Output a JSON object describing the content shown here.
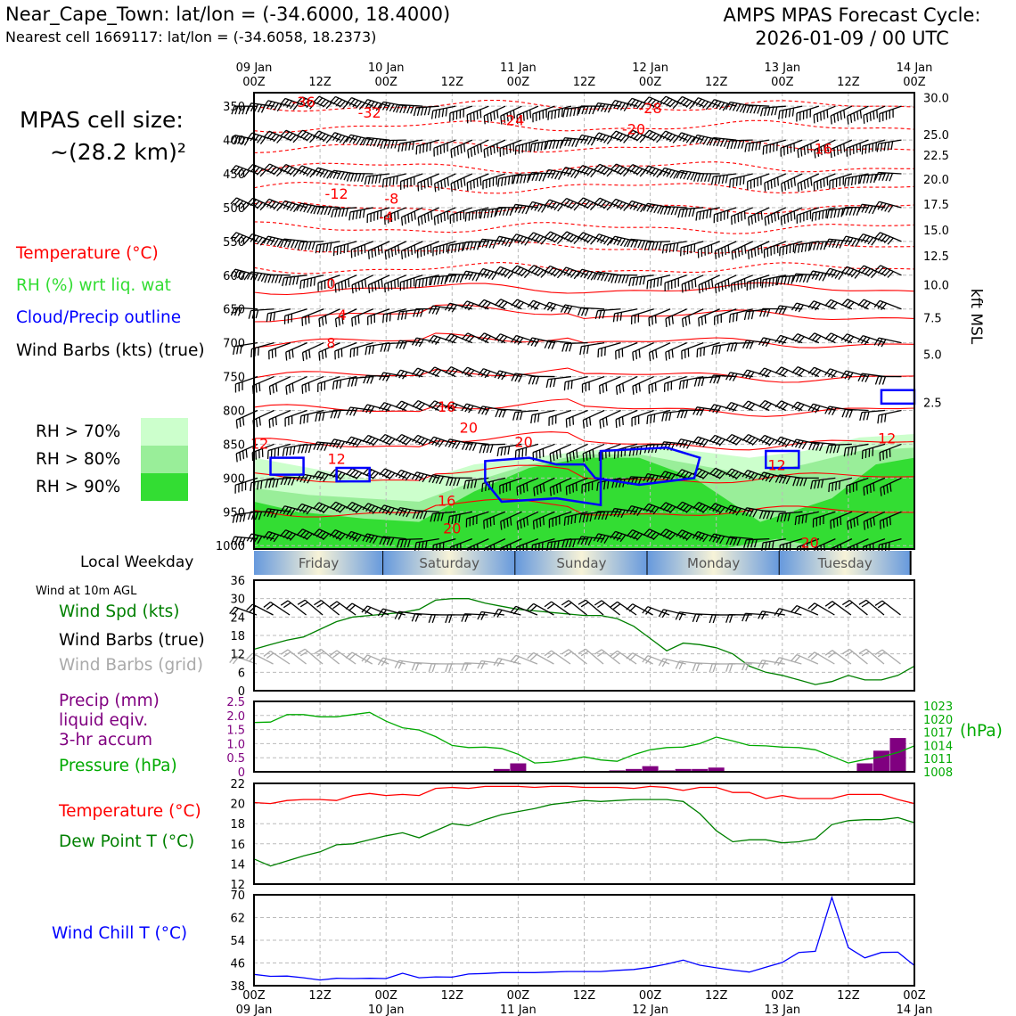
{
  "header": {
    "title_left": "Near_Cape_Town: lat/lon = (-34.6000, 18.4000)",
    "subtitle_left": "Nearest cell 1669117: lat/lon = (-34.6058, 18.2373)",
    "title_right_line1": "AMPS MPAS Forecast Cycle:",
    "title_right_line2": "2026-01-09 / 00 UTC",
    "cell_size_line1": "MPAS cell size:",
    "cell_size_line2": "~(28.2 km)²"
  },
  "colors": {
    "temperature": "#ff0000",
    "rh": "#33cc33",
    "cloud": "#0000ff",
    "wind": "#000000",
    "wind_grid": "#aaaaaa",
    "precip": "#800080",
    "pressure": "#00aa00",
    "dewpoint": "#008000",
    "windchill": "#0000ff",
    "rh70": "#ccffcc",
    "rh80": "#99ee99",
    "rh90": "#33dd33"
  },
  "time_axis": {
    "top_labels": [
      {
        "l1": "09 Jan",
        "l2": "00Z"
      },
      {
        "l1": "",
        "l2": "12Z"
      },
      {
        "l1": "10 Jan",
        "l2": "00Z"
      },
      {
        "l1": "",
        "l2": "12Z"
      },
      {
        "l1": "11 Jan",
        "l2": "00Z"
      },
      {
        "l1": "",
        "l2": "12Z"
      },
      {
        "l1": "12 Jan",
        "l2": "00Z"
      },
      {
        "l1": "",
        "l2": "12Z"
      },
      {
        "l1": "13 Jan",
        "l2": "00Z"
      },
      {
        "l1": "",
        "l2": "12Z"
      },
      {
        "l1": "14 Jan",
        "l2": "00Z"
      }
    ],
    "bottom_labels": [
      {
        "l1": "00Z",
        "l2": "09 Jan"
      },
      {
        "l1": "12Z",
        "l2": ""
      },
      {
        "l1": "00Z",
        "l2": "10 Jan"
      },
      {
        "l1": "12Z",
        "l2": ""
      },
      {
        "l1": "00Z",
        "l2": "11 Jan"
      },
      {
        "l1": "12Z",
        "l2": ""
      },
      {
        "l1": "00Z",
        "l2": "12 Jan"
      },
      {
        "l1": "12Z",
        "l2": ""
      },
      {
        "l1": "00Z",
        "l2": "13 Jan"
      },
      {
        "l1": "12Z",
        "l2": ""
      },
      {
        "l1": "00Z",
        "l2": "14 Jan"
      }
    ]
  },
  "weekday_strip": {
    "label": "Local Weekday",
    "days": [
      "Friday",
      "Saturday",
      "Sunday",
      "Monday",
      "Tuesday"
    ]
  },
  "cross_section_legend": {
    "temperature": "Temperature (°C)",
    "rh": "RH (%) wrt liq. wat",
    "cloud": "Cloud/Precip outline",
    "wind": "Wind Barbs (kts) (true)",
    "rh70": "RH > 70%",
    "rh80": "RH > 80%",
    "rh90": "RH > 90%",
    "right_axis_label": "kft MSL"
  },
  "surface_wind_legend": {
    "heading": "Wind at 10m AGL",
    "speed": "Wind Spd (kts)",
    "barbs_true": "Wind Barbs (true)",
    "barbs_grid": "Wind Barbs (grid)"
  },
  "precip_legend": {
    "line1": "Precip (mm)",
    "line2": "liquid eqiv.",
    "line3": "3-hr accum",
    "pressure": "Pressure (hPa)",
    "right_label": "(hPa)"
  },
  "temp_legend": {
    "temperature": "Temperature (°C)",
    "dewpoint": "Dew Point T (°C)"
  },
  "windchill_legend": {
    "label": "Wind Chill T (°C)"
  },
  "chart_data": [
    {
      "type": "heatmap",
      "pressure_ticks": [
        "350",
        "400",
        "450",
        "500",
        "550",
        "600",
        "650",
        "700",
        "750",
        "800",
        "850",
        "900",
        "950",
        "1000"
      ],
      "kft_ticks": [
        "30.0",
        "25.0",
        "22.5",
        "20.0",
        "17.5",
        "15.0",
        "12.5",
        "10.0",
        "7.5",
        "5.0",
        "2.5"
      ],
      "kft_tick_pressures": [
        337,
        392,
        422,
        458,
        495,
        533,
        571,
        614,
        663,
        717,
        788
      ],
      "temperature_labels": [
        {
          "t": "-36",
          "hour": 9,
          "p": 351
        },
        {
          "t": "-32",
          "hour": 21,
          "p": 367
        },
        {
          "t": "-28",
          "hour": 72,
          "p": 360
        },
        {
          "t": "-24",
          "hour": 47,
          "p": 378
        },
        {
          "t": "-20",
          "hour": 69,
          "p": 391
        },
        {
          "t": "-16",
          "hour": 103,
          "p": 420
        },
        {
          "t": "-12",
          "hour": 15,
          "p": 487
        },
        {
          "t": "-8",
          "hour": 25,
          "p": 494
        },
        {
          "t": "-4",
          "hour": 24,
          "p": 521
        },
        {
          "t": "0",
          "hour": 14,
          "p": 620
        },
        {
          "t": "4",
          "hour": 16,
          "p": 666
        },
        {
          "t": "8",
          "hour": 14,
          "p": 708
        },
        {
          "t": "16",
          "hour": 35,
          "p": 802
        },
        {
          "t": "20",
          "hour": 39,
          "p": 833
        },
        {
          "t": "20",
          "hour": 49,
          "p": 854
        },
        {
          "t": "12",
          "hour": 1,
          "p": 857
        },
        {
          "t": "12",
          "hour": 15,
          "p": 879
        },
        {
          "t": "12",
          "hour": 95,
          "p": 888
        },
        {
          "t": "12",
          "hour": 115,
          "p": 849
        },
        {
          "t": "16",
          "hour": 35,
          "p": 941
        },
        {
          "t": "20",
          "hour": 36,
          "p": 982
        },
        {
          "t": "20",
          "hour": 101,
          "p": 1003
        }
      ],
      "rh_levels": [
        "RH > 70%",
        "RH > 80%",
        "RH > 90%"
      ]
    },
    {
      "type": "line",
      "ylabel": "Wind Spd (kts)",
      "ylim": [
        0,
        36
      ],
      "yticks": [
        0,
        6,
        12,
        18,
        24,
        30,
        36
      ],
      "x": [
        0,
        3,
        6,
        9,
        12,
        15,
        18,
        21,
        24,
        27,
        30,
        33,
        36,
        39,
        42,
        45,
        48,
        51,
        54,
        57,
        60,
        63,
        66,
        69,
        72,
        75,
        78,
        81,
        84,
        87,
        90,
        93,
        96,
        99,
        102,
        105,
        108,
        111,
        114,
        117,
        120
      ],
      "series": [
        {
          "name": "Wind Spd (kts)",
          "values": [
            13.5,
            15,
            16.5,
            17.5,
            20,
            22.5,
            24,
            24.5,
            25,
            25.5,
            26.5,
            29.5,
            30,
            30,
            28.5,
            27.5,
            26.5,
            26,
            25.5,
            25,
            24.5,
            24.5,
            23.5,
            21,
            17,
            13,
            15.5,
            15,
            14,
            12,
            8,
            6,
            5,
            3.5,
            2,
            3,
            5,
            3.5,
            3.5,
            5,
            8
          ]
        }
      ]
    },
    {
      "type": "bar",
      "ylabel": "Precip (mm)",
      "ylim": [
        0,
        2.5
      ],
      "yticks": [
        0,
        0.5,
        1.0,
        1.5,
        2.0,
        2.5
      ],
      "hours": [
        45,
        48,
        66,
        69,
        72,
        75,
        78,
        81,
        84,
        111,
        114,
        117
      ],
      "values": [
        0.1,
        0.3,
        0.05,
        0.1,
        0.2,
        0.05,
        0.1,
        0.1,
        0.15,
        0.3,
        0.75,
        1.2
      ]
    },
    {
      "type": "line",
      "ylabel": "Pressure (hPa)",
      "ylim": [
        1008,
        1024
      ],
      "yticks": [
        1008,
        1011,
        1014,
        1017,
        1020,
        1023
      ],
      "x": [
        0,
        3,
        6,
        9,
        12,
        15,
        18,
        21,
        24,
        27,
        30,
        33,
        36,
        39,
        42,
        45,
        48,
        51,
        54,
        57,
        60,
        63,
        66,
        69,
        72,
        75,
        78,
        81,
        84,
        87,
        90,
        93,
        96,
        99,
        102,
        105,
        108,
        111,
        114,
        117,
        120
      ],
      "series": [
        {
          "name": "Pressure (hPa)",
          "values": [
            1019.2,
            1019.3,
            1021,
            1021,
            1020.5,
            1020.5,
            1021,
            1021.5,
            1019.5,
            1018,
            1017.5,
            1016,
            1014,
            1013.5,
            1013.6,
            1013.3,
            1012,
            1010,
            1010.2,
            1010.7,
            1011.4,
            1010.7,
            1010.4,
            1011.9,
            1013,
            1013.5,
            1013.6,
            1014.4,
            1015.9,
            1015,
            1014,
            1013.9,
            1013.6,
            1013.5,
            1013,
            1011.5,
            1010,
            1010.8,
            1011.4,
            1012.4,
            1013.9
          ]
        }
      ]
    },
    {
      "type": "line",
      "ylim": [
        12,
        22
      ],
      "yticks": [
        12,
        14,
        16,
        18,
        20,
        22
      ],
      "x": [
        0,
        3,
        6,
        9,
        12,
        15,
        18,
        21,
        24,
        27,
        30,
        33,
        36,
        39,
        42,
        45,
        48,
        51,
        54,
        57,
        60,
        63,
        66,
        69,
        72,
        75,
        78,
        81,
        84,
        87,
        90,
        93,
        96,
        99,
        102,
        105,
        108,
        111,
        114,
        117,
        120
      ],
      "series": [
        {
          "name": "Temperature (°C)",
          "values": [
            20.1,
            20,
            20.3,
            20.4,
            20.4,
            20.3,
            20.8,
            21,
            20.8,
            20.9,
            20.8,
            21.5,
            21.6,
            21.5,
            21.7,
            21.7,
            21.7,
            21.6,
            21.7,
            21.7,
            21.6,
            21.6,
            21.6,
            21.5,
            21.7,
            21.6,
            21.3,
            21.6,
            21.6,
            21.1,
            21.1,
            20.5,
            20.8,
            20.5,
            20.5,
            20.5,
            20.9,
            20.9,
            20.9,
            20.4,
            20
          ]
        },
        {
          "name": "Dew Point T (°C)",
          "values": [
            14.5,
            13.8,
            14.3,
            14.8,
            15.2,
            15.9,
            16,
            16.4,
            16.8,
            17.1,
            16.6,
            17.3,
            18,
            17.8,
            18.4,
            18.9,
            19.2,
            19.5,
            19.9,
            20.1,
            20.3,
            20.2,
            20.3,
            20.4,
            20.4,
            20.4,
            20.2,
            19,
            17.3,
            16.2,
            16.4,
            16.4,
            16.1,
            16.2,
            16.5,
            17.9,
            18.3,
            18.4,
            18.4,
            18.6,
            18.1
          ]
        }
      ]
    },
    {
      "type": "line",
      "ylabel": "Wind Chill T (°C)",
      "ylim": [
        38,
        70
      ],
      "yticks": [
        38,
        46,
        54,
        62,
        70
      ],
      "x": [
        0,
        3,
        6,
        9,
        12,
        15,
        18,
        21,
        24,
        27,
        30,
        33,
        36,
        39,
        42,
        45,
        48,
        51,
        54,
        57,
        60,
        63,
        66,
        69,
        72,
        75,
        78,
        81,
        84,
        87,
        90,
        93,
        96,
        99,
        102,
        105,
        108,
        111,
        114,
        117,
        120
      ],
      "series": [
        {
          "name": "Wind Chill T (°C)",
          "values": [
            42,
            41.3,
            41.4,
            40.8,
            40,
            40.6,
            40.5,
            40.6,
            40.5,
            42.4,
            40.8,
            41.1,
            41,
            42.1,
            42.3,
            42.6,
            42.6,
            42.6,
            42.8,
            43,
            43,
            43,
            43.4,
            43.7,
            44.5,
            45.6,
            47,
            45.2,
            44.3,
            43.5,
            42.8,
            44.5,
            46.2,
            49.7,
            50.1,
            69.1,
            51.4,
            47.8,
            49.7,
            49.8,
            45.1
          ]
        }
      ]
    }
  ]
}
